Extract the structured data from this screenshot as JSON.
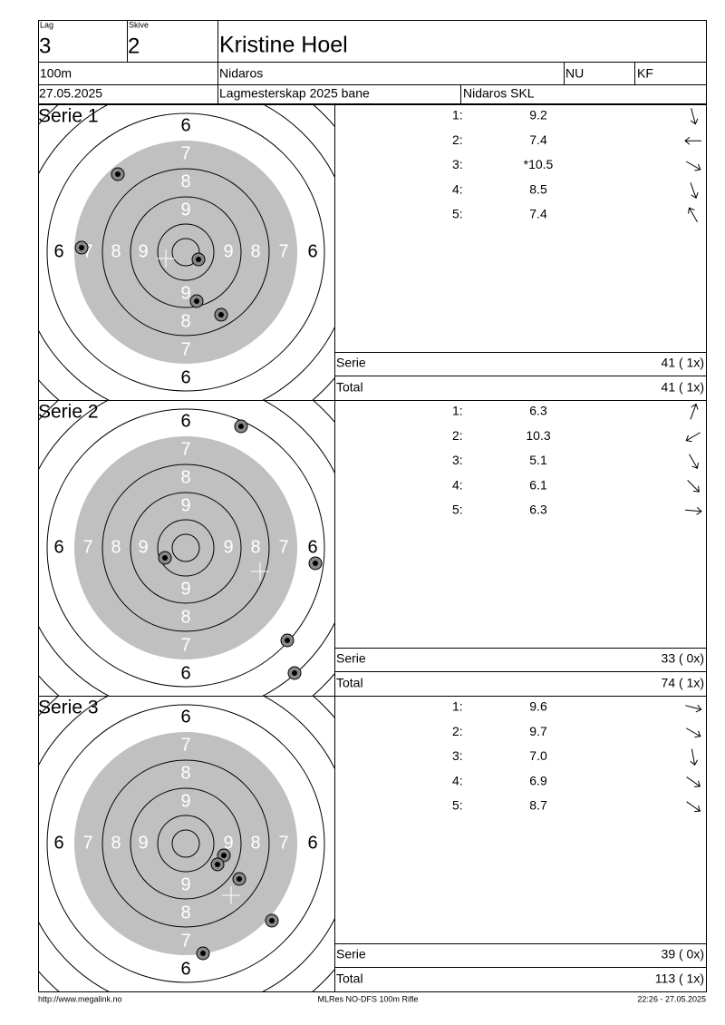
{
  "header": {
    "lag_label": "Lag",
    "lag": "3",
    "skive_label": "Skive",
    "skive": "2",
    "name": "Kristine Hoel",
    "distance": "100m",
    "club": "Nidaros",
    "class1": "NU",
    "class2": "KF",
    "date": "27.05.2025",
    "event": "Lagmesterskap 2025 bane",
    "team": "Nidaros SKL"
  },
  "ring_labels": [
    "6",
    "7",
    "8",
    "9"
  ],
  "series": [
    {
      "title": "Serie 1",
      "shots": [
        {
          "n": "1:",
          "value": "9.2"
        },
        {
          "n": "2:",
          "value": "7.4"
        },
        {
          "n": "3:",
          "value": "*10.5"
        },
        {
          "n": "4:",
          "value": "8.5"
        },
        {
          "n": "5:",
          "value": "7.4"
        }
      ],
      "serie_label": "Serie",
      "serie_score": "41 ( 1x)",
      "total_label": "Total",
      "total_score": "41 ( 1x)"
    },
    {
      "title": "Serie 2",
      "shots": [
        {
          "n": "1:",
          "value": "6.3"
        },
        {
          "n": "2:",
          "value": "10.3"
        },
        {
          "n": "3:",
          "value": "5.1"
        },
        {
          "n": "4:",
          "value": "6.1"
        },
        {
          "n": "5:",
          "value": "6.3"
        }
      ],
      "serie_label": "Serie",
      "serie_score": "33 ( 0x)",
      "total_label": "Total",
      "total_score": "74 ( 1x)"
    },
    {
      "title": "Serie 3",
      "shots": [
        {
          "n": "1:",
          "value": "9.6"
        },
        {
          "n": "2:",
          "value": "9.7"
        },
        {
          "n": "3:",
          "value": "7.0"
        },
        {
          "n": "4:",
          "value": "6.9"
        },
        {
          "n": "5:",
          "value": "8.7"
        }
      ],
      "serie_label": "Serie",
      "serie_score": "39 ( 0x)",
      "total_label": "Total",
      "total_score": "113 ( 1x)"
    }
  ],
  "footer": {
    "left": "http://www.megalink.no",
    "center": "MLRes NO-DFS 100m Rifle",
    "right": "22:26 - 27.05.2025"
  }
}
